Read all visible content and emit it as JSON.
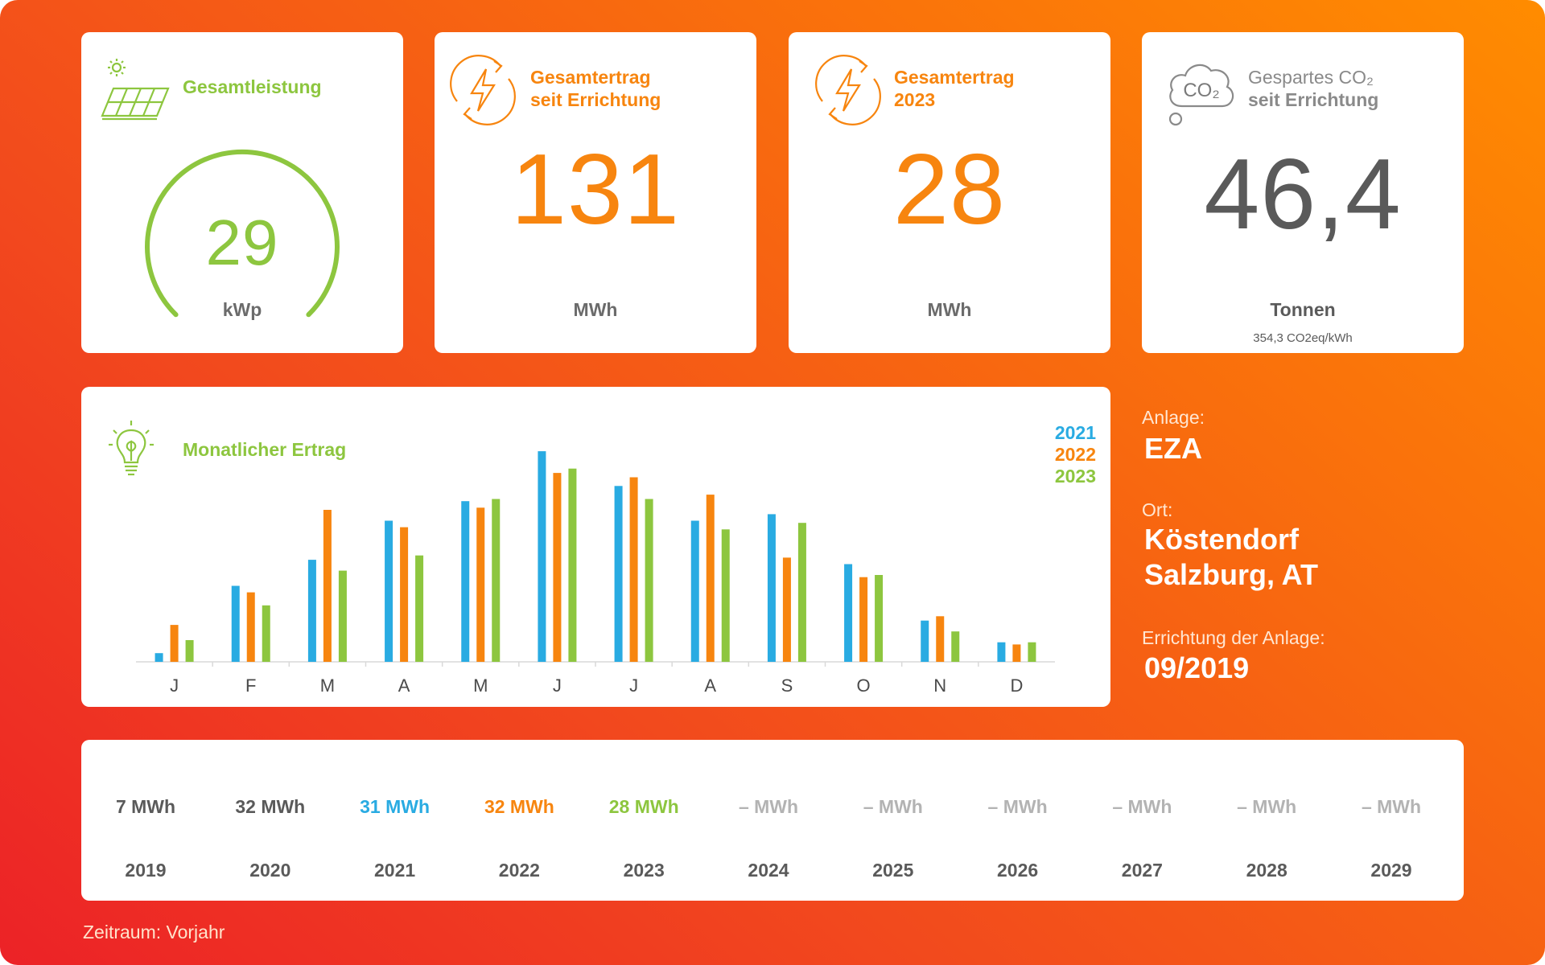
{
  "colors": {
    "green": "#8dc63f",
    "orange": "#f7850f",
    "blue": "#29abe2",
    "gray": "#5a5a5a",
    "light_gray": "#b3b3b3"
  },
  "kpis": {
    "power": {
      "title": "Gesamtleistung",
      "value": "29",
      "unit": "kWp",
      "icon": "solar-panel-icon"
    },
    "total_yield": {
      "title_line1": "Gesamtertrag",
      "title_line2": "seit Errichtung",
      "value": "131",
      "unit": "MWh",
      "icon": "lightning-cycle-icon"
    },
    "year_yield": {
      "title_line1": "Gesamtertrag",
      "title_line2": "2023",
      "value": "28",
      "unit": "MWh",
      "icon": "lightning-cycle-icon"
    },
    "co2": {
      "title_line1": "Gespartes CO₂",
      "title_line2": "seit Errichtung",
      "value": "46,4",
      "unit": "Tonnen",
      "note": "354,3 CO2eq/kWh",
      "icon": "co2-cloud-icon",
      "icon_text": "CO₂"
    }
  },
  "monthly": {
    "title": "Monatlicher Ertrag",
    "icon": "lightbulb-leaf-icon"
  },
  "chart_data": {
    "type": "bar",
    "title": "Monatlicher Ertrag",
    "categories": [
      "J",
      "F",
      "M",
      "A",
      "M",
      "J",
      "J",
      "A",
      "S",
      "O",
      "N",
      "D"
    ],
    "series": [
      {
        "name": "2021",
        "color": "#29abe2",
        "values": [
          0.4,
          3.5,
          4.7,
          6.5,
          7.4,
          9.7,
          8.1,
          6.5,
          6.8,
          4.5,
          1.9,
          0.9
        ]
      },
      {
        "name": "2022",
        "color": "#f7850f",
        "values": [
          1.7,
          3.2,
          7.0,
          6.2,
          7.1,
          8.7,
          8.5,
          7.7,
          4.8,
          3.9,
          2.1,
          0.8
        ]
      },
      {
        "name": "2023",
        "color": "#8dc63f",
        "values": [
          1.0,
          2.6,
          4.2,
          4.9,
          7.5,
          8.9,
          7.5,
          6.1,
          6.4,
          4.0,
          1.4,
          0.9
        ]
      }
    ],
    "legend_position": "top-right",
    "grid": false
  },
  "info": {
    "plant_label": "Anlage:",
    "plant_value": "EZA",
    "location_label": "Ort:",
    "location_line1": "Köstendorf",
    "location_line2": "Salzburg, AT",
    "install_label": "Errichtung der Anlage:",
    "install_value": "09/2019"
  },
  "years": [
    {
      "value": "7 MWh",
      "year": "2019",
      "color": "#5a5a5a"
    },
    {
      "value": "32 MWh",
      "year": "2020",
      "color": "#5a5a5a"
    },
    {
      "value": "31 MWh",
      "year": "2021",
      "color": "#29abe2"
    },
    {
      "value": "32 MWh",
      "year": "2022",
      "color": "#f7850f"
    },
    {
      "value": "28 MWh",
      "year": "2023",
      "color": "#8dc63f"
    },
    {
      "value": "– MWh",
      "year": "2024",
      "color": "#b3b3b3"
    },
    {
      "value": "– MWh",
      "year": "2025",
      "color": "#b3b3b3"
    },
    {
      "value": "– MWh",
      "year": "2026",
      "color": "#b3b3b3"
    },
    {
      "value": "– MWh",
      "year": "2027",
      "color": "#b3b3b3"
    },
    {
      "value": "– MWh",
      "year": "2028",
      "color": "#b3b3b3"
    },
    {
      "value": "– MWh",
      "year": "2029",
      "color": "#b3b3b3"
    }
  ],
  "footer": {
    "period": "Zeitraum: Vorjahr"
  }
}
